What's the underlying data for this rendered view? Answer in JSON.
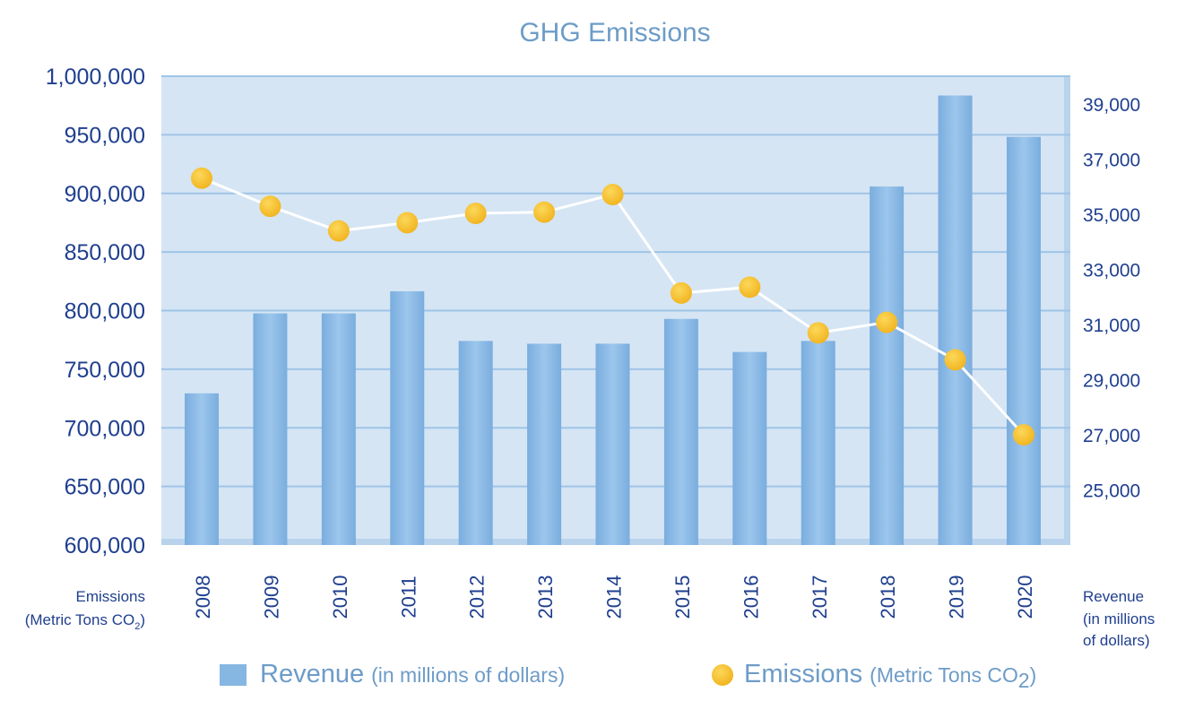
{
  "chart_data": {
    "type": "bar",
    "title": "GHG Emissions",
    "categories": [
      "2008",
      "2009",
      "2010",
      "2011",
      "2012",
      "2013",
      "2014",
      "2015",
      "2016",
      "2017",
      "2018",
      "2019",
      "2020"
    ],
    "series": [
      {
        "name": "Revenue",
        "name_detail": "(in millions of dollars)",
        "type": "bar",
        "axis": "right",
        "values": [
          28500,
          31400,
          31400,
          32200,
          30400,
          30300,
          30300,
          31200,
          30000,
          30400,
          36000,
          39300,
          37800
        ]
      },
      {
        "name": "Emissions",
        "name_detail_prefix": "(Metric Tons CO",
        "name_detail_sub": "2",
        "name_detail_suffix": ")",
        "type": "line",
        "axis": "left",
        "values": [
          913000,
          889000,
          868000,
          875000,
          883000,
          884000,
          899000,
          815000,
          820000,
          781000,
          790000,
          758000,
          694000
        ]
      }
    ],
    "left_axis": {
      "label_line1": "Emissions",
      "label_line2_prefix": "(Metric Tons CO",
      "label_line2_sub": "2",
      "label_line2_suffix": ")",
      "min": 600000,
      "max": 1000000,
      "step": 50000,
      "ticks": [
        "600,000",
        "650,000",
        "700,000",
        "750,000",
        "800,000",
        "850,000",
        "900,000",
        "950,000",
        "1,000,000"
      ]
    },
    "right_axis": {
      "label_lines": [
        "Revenue",
        "(in millions",
        "of dollars)"
      ],
      "min": 23000,
      "max": 40000,
      "ticks": [
        25000,
        27000,
        29000,
        31000,
        33000,
        35000,
        37000,
        39000
      ],
      "tick_labels": [
        "25,000",
        "27,000",
        "29,000",
        "31,000",
        "33,000",
        "35,000",
        "37,000",
        "39,000"
      ]
    },
    "grid": true,
    "legend_position": "bottom",
    "colors": {
      "bar": "#86b6e2",
      "dot": "#f7c232",
      "line": "#ffffff",
      "plot_bg": "#d5e5f4",
      "grid": "#9fc4e6",
      "text": "#1f3f8f",
      "title": "#6d9cc8"
    }
  }
}
